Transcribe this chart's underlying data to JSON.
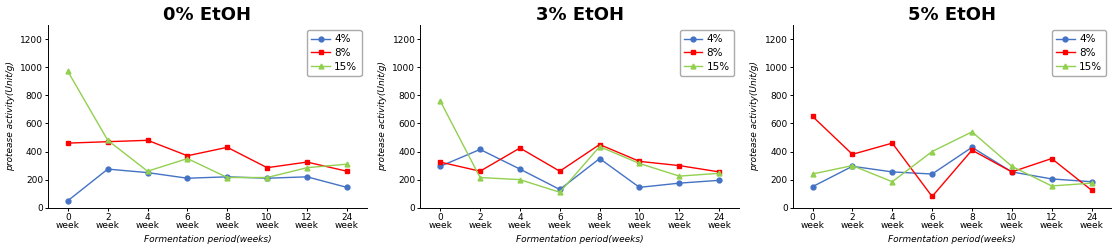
{
  "charts": [
    {
      "title": "0% EtOH",
      "series": {
        "4%": [
          50,
          275,
          250,
          210,
          220,
          210,
          220,
          145
        ],
        "8%": [
          460,
          470,
          480,
          370,
          430,
          285,
          325,
          260
        ],
        "15%": [
          970,
          480,
          260,
          350,
          215,
          215,
          285,
          310
        ]
      }
    },
    {
      "title": "3% EtOH",
      "series": {
        "4%": [
          295,
          415,
          275,
          130,
          350,
          145,
          175,
          195
        ],
        "8%": [
          325,
          260,
          425,
          260,
          450,
          330,
          300,
          255
        ],
        "15%": [
          760,
          215,
          200,
          110,
          435,
          315,
          225,
          245
        ]
      }
    },
    {
      "title": "5% EtOH",
      "series": {
        "4%": [
          150,
          295,
          255,
          240,
          430,
          255,
          205,
          185
        ],
        "8%": [
          650,
          380,
          460,
          80,
          410,
          255,
          350,
          125
        ],
        "15%": [
          240,
          300,
          185,
          400,
          540,
          295,
          155,
          175
        ]
      }
    }
  ],
  "x_positions": [
    0,
    1,
    2,
    3,
    4,
    5,
    6,
    7
  ],
  "x_labels": [
    "0\nweek",
    "2\nweek",
    "4\nweek",
    "6\nweek",
    "8\nweek",
    "10\nweek",
    "12\nweek",
    "24\nweek"
  ],
  "xlabel": "Formentation period(weeks)",
  "ylabel": "protease activity(Unit/g)",
  "ylim": [
    0,
    1300
  ],
  "yticks": [
    0,
    200,
    400,
    600,
    800,
    1000,
    1200
  ],
  "series_colors": {
    "4%": "#4472c4",
    "8%": "#ff0000",
    "15%": "#92d050"
  },
  "series_markers": {
    "4%": "o",
    "8%": "s",
    "15%": "^"
  },
  "legend_labels": [
    "4%",
    "8%",
    "15%"
  ],
  "bg_color": "#ffffff",
  "title_fontsize": 13,
  "axis_fontsize": 6.5,
  "label_fontsize": 6.5,
  "legend_fontsize": 7.5
}
